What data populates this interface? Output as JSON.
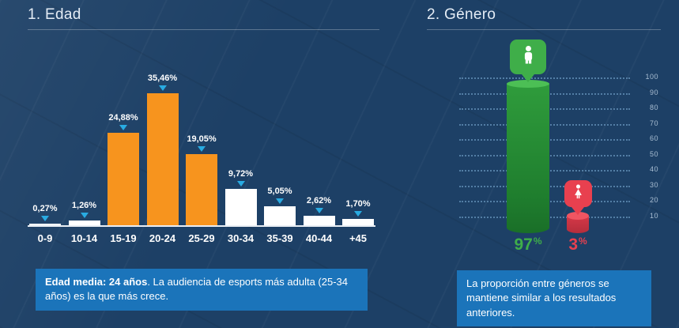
{
  "colors": {
    "background": "#1d4066",
    "accent_blue": "#29abe2",
    "note_background": "#1b74ba",
    "orange_bar": "#f7941e",
    "white_bar": "#ffffff",
    "male_green": "#3fae49",
    "female_red": "#e8404f"
  },
  "age": {
    "title": "1. Edad",
    "chart_data": {
      "type": "bar",
      "categories": [
        "0-9",
        "10-14",
        "15-19",
        "20-24",
        "25-29",
        "30-34",
        "35-39",
        "40-44",
        "+45"
      ],
      "values": [
        0.27,
        1.26,
        24.88,
        35.46,
        19.05,
        9.72,
        5.05,
        2.62,
        1.7
      ],
      "value_labels": [
        "0,27%",
        "1,26%",
        "24,88%",
        "35,46%",
        "19,05%",
        "9,72%",
        "5,05%",
        "2,62%",
        "1,70%"
      ],
      "bar_colors": [
        "#ffffff",
        "#ffffff",
        "#f7941e",
        "#f7941e",
        "#f7941e",
        "#ffffff",
        "#ffffff",
        "#ffffff",
        "#ffffff"
      ],
      "marker": "down-triangle",
      "marker_color": "#29abe2",
      "ylabel": "",
      "xlabel": "",
      "ylim": [
        0,
        38
      ],
      "grid": false
    },
    "note": {
      "bold": "Edad media: 24 años",
      "rest": ". La audiencia de esports más adulta (25-34 años) es la que más crece."
    }
  },
  "gender": {
    "title": "2. Género",
    "chart_data": {
      "type": "bar",
      "series": [
        {
          "name": "male",
          "value": 97,
          "label": "97",
          "suffix": "%",
          "color": "#3fae49",
          "icon": "male-icon"
        },
        {
          "name": "female",
          "value": 3,
          "label": "3",
          "suffix": "%",
          "color": "#e8404f",
          "icon": "female-icon"
        }
      ],
      "axis_ticks": [
        100,
        90,
        80,
        70,
        60,
        50,
        40,
        30,
        20,
        10
      ],
      "ylim": [
        0,
        100
      ],
      "grid": "dotted-horizontal",
      "legend_position": "none"
    },
    "note": "La proporción entre géneros se mantiene similar a los resultados anteriores."
  }
}
